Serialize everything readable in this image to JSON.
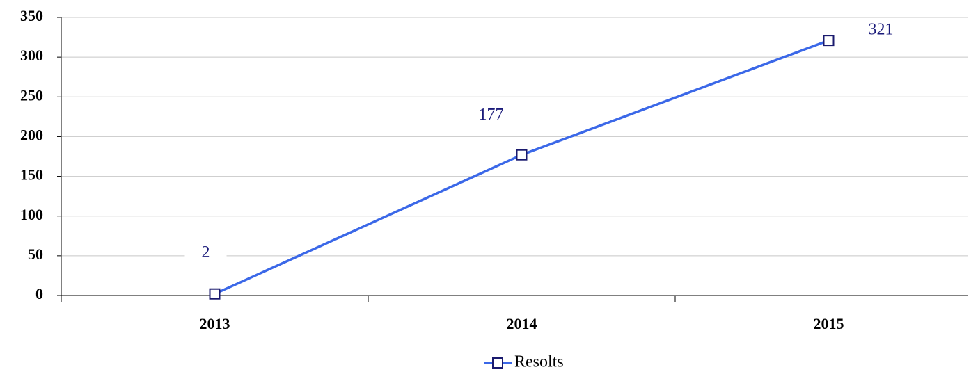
{
  "chart_data": {
    "type": "line",
    "categories": [
      "2013",
      "2014",
      "2015"
    ],
    "series": [
      {
        "name": "Resolts",
        "color": "#3b68e8",
        "values": [
          2,
          177,
          321
        ]
      }
    ],
    "ylim": [
      0,
      350
    ],
    "yticks": [
      0,
      50,
      100,
      150,
      200,
      250,
      300,
      350
    ],
    "grid": true,
    "legend": "bottom",
    "data_labels": true
  }
}
